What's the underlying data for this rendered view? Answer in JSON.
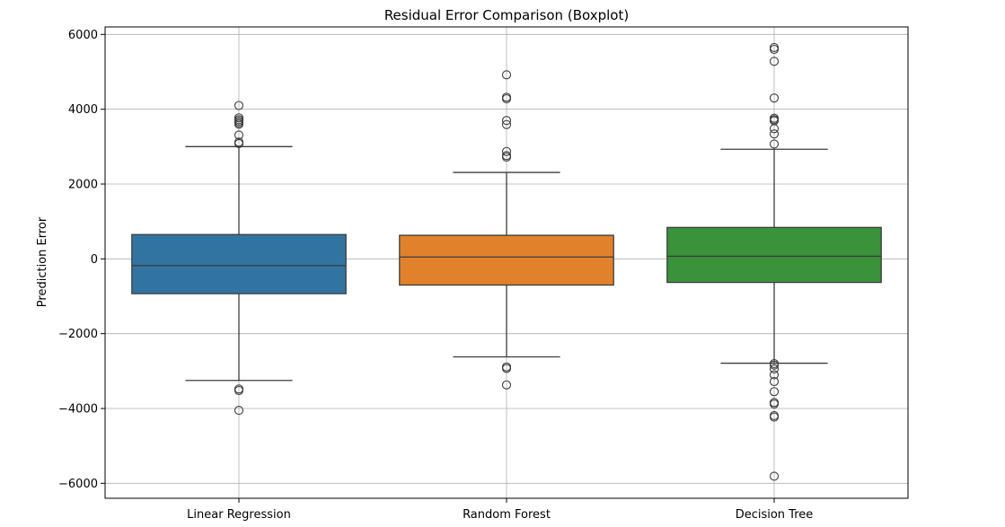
{
  "chart_data": {
    "type": "boxplot",
    "title": "Residual Error Comparison (Boxplot)",
    "xlabel": "",
    "ylabel": "Prediction Error",
    "ylim": [
      -6400,
      6200
    ],
    "yticks": [
      -6000,
      -4000,
      -2000,
      0,
      2000,
      4000,
      6000
    ],
    "ytick_labels": [
      "−6000",
      "−4000",
      "−2000",
      "0",
      "2000",
      "4000",
      "6000"
    ],
    "grid": true,
    "categories": [
      "Linear Regression",
      "Random Forest",
      "Decision Tree"
    ],
    "colors": [
      "#3274a1",
      "#e1812c",
      "#3a923a"
    ],
    "boxes": [
      {
        "name": "Linear Regression",
        "whisker_low": -3250,
        "q1": -930,
        "median": -180,
        "q3": 650,
        "whisker_high": 3000,
        "outliers": [
          4100,
          3770,
          3720,
          3680,
          3640,
          3600,
          3310,
          3120,
          3080,
          -3480,
          -3520,
          -4050
        ]
      },
      {
        "name": "Random Forest",
        "whisker_low": -2620,
        "q1": -700,
        "median": 50,
        "q3": 630,
        "whisker_high": 2310,
        "outliers": [
          4920,
          4320,
          4280,
          3700,
          3590,
          2870,
          2760,
          2720,
          -2890,
          -2930,
          -3370
        ]
      },
      {
        "name": "Decision Tree",
        "whisker_low": -2790,
        "q1": -630,
        "median": 70,
        "q3": 840,
        "whisker_high": 2930,
        "outliers": [
          5650,
          5600,
          5280,
          4300,
          3760,
          3720,
          3690,
          3480,
          3340,
          3070,
          -2800,
          -2840,
          -2940,
          -3100,
          -3280,
          -3550,
          -3840,
          -3880,
          -4190,
          -4230,
          -5810
        ]
      }
    ]
  }
}
